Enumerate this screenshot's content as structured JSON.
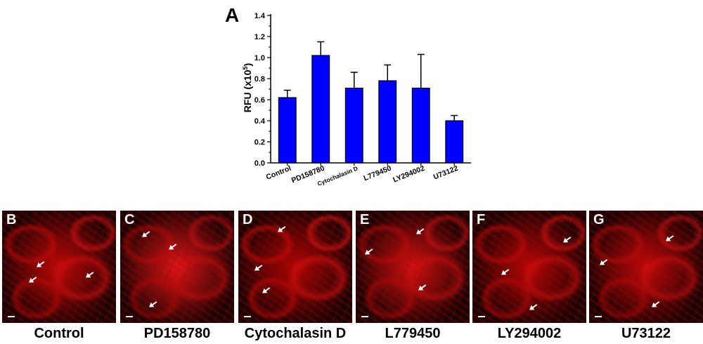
{
  "chart_data": {
    "type": "bar",
    "panel_label": "A",
    "title": "",
    "xlabel": "",
    "ylabel": "RFU (x10",
    "ylabel_sup": "5",
    "ylabel_end": ")",
    "ylim": [
      0,
      1.4
    ],
    "yticks": [
      "0.0",
      "0.2",
      "0.4",
      "0.6",
      "0.8",
      "1.0",
      "1.2",
      "1.4"
    ],
    "categories": [
      "Control",
      "PD158780",
      "Cytochalasin D",
      "L779450",
      "LY294002",
      "U73122"
    ],
    "values": [
      0.62,
      1.02,
      0.71,
      0.78,
      0.71,
      0.4
    ],
    "errors": [
      0.07,
      0.13,
      0.15,
      0.15,
      0.32,
      0.05
    ],
    "bar_color": "#0000ff",
    "grid": false,
    "legend": "none"
  },
  "panels": [
    {
      "letter": "B",
      "caption": "Control"
    },
    {
      "letter": "C",
      "caption": "PD158780"
    },
    {
      "letter": "D",
      "caption": "Cytochalasin D"
    },
    {
      "letter": "E",
      "caption": "L779450"
    },
    {
      "letter": "F",
      "caption": "LY294002"
    },
    {
      "letter": "G",
      "caption": "U73122"
    }
  ],
  "micrograph": {
    "channel_color": "#d01010",
    "background_color": "#1a0303",
    "scale_bar_color": "#ffffff",
    "arrow_color": "#ffffff"
  }
}
